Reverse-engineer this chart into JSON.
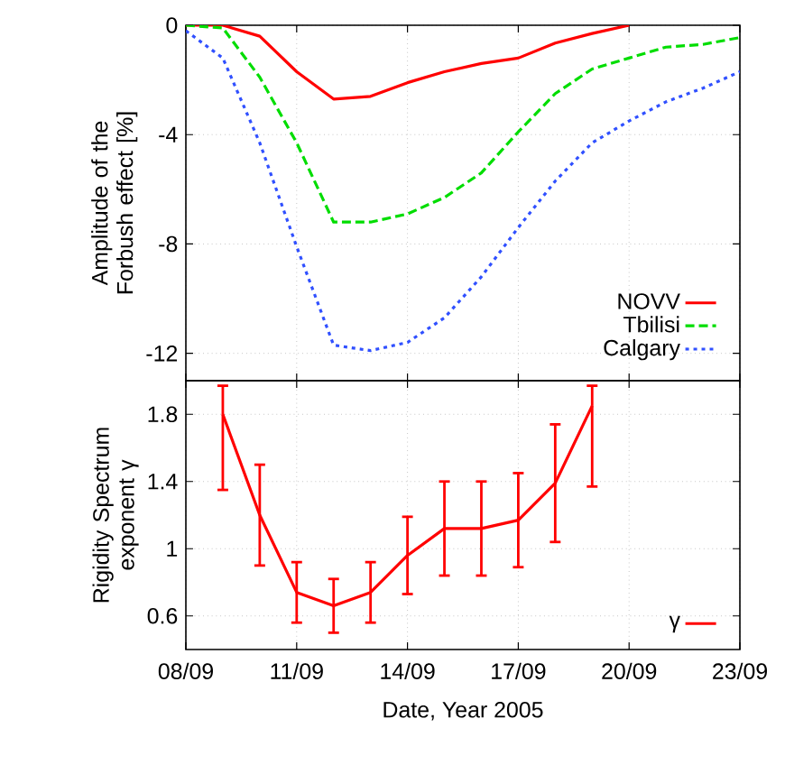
{
  "chart_data": [
    {
      "type": "line",
      "ylabel": "Amplitude of the Forbush effect [%]",
      "xlim": [
        "2005-09-08",
        "2005-09-23"
      ],
      "xticks": [
        {
          "value": "2005-09-08",
          "label": null
        },
        {
          "value": "2005-09-11",
          "label": null
        },
        {
          "value": "2005-09-14",
          "label": null
        },
        {
          "value": "2005-09-17",
          "label": null
        },
        {
          "value": "2005-09-20",
          "label": null
        },
        {
          "value": "2005-09-23",
          "label": null
        }
      ],
      "ylim": [
        -13,
        0
      ],
      "yticks": [
        -12,
        -8,
        -4,
        0
      ],
      "grid": true,
      "legend": "bottom right",
      "tick_labels": "y",
      "marker": "none",
      "series": [
        {
          "name": "NOVV",
          "color": "#ff0000",
          "line_style": "solid",
          "x": [
            "2005-09-08",
            "2005-09-09",
            "2005-09-10",
            "2005-09-11",
            "2005-09-12",
            "2005-09-13",
            "2005-09-14",
            "2005-09-15",
            "2005-09-16",
            "2005-09-17",
            "2005-09-18",
            "2005-09-19",
            "2005-09-20"
          ],
          "values": [
            0,
            0,
            -0.4,
            -1.7,
            -2.7,
            -2.6,
            -2.1,
            -1.7,
            -1.4,
            -1.2,
            -0.65,
            -0.3,
            0
          ]
        },
        {
          "name": "Tbilisi",
          "color": "#00dd00",
          "line_style": "dashed",
          "x": [
            "2005-09-08",
            "2005-09-09",
            "2005-09-10",
            "2005-09-11",
            "2005-09-12",
            "2005-09-13",
            "2005-09-14",
            "2005-09-15",
            "2005-09-16",
            "2005-09-17",
            "2005-09-18",
            "2005-09-19",
            "2005-09-20",
            "2005-09-21",
            "2005-09-22",
            "2005-09-23"
          ],
          "values": [
            0,
            -0.1,
            -1.9,
            -4.3,
            -7.2,
            -7.2,
            -6.9,
            -6.3,
            -5.4,
            -3.9,
            -2.5,
            -1.6,
            -1.2,
            -0.8,
            -0.7,
            -0.45
          ]
        },
        {
          "name": "Calgary",
          "color": "#3050ff",
          "line_style": "dotted",
          "x": [
            "2005-09-08",
            "2005-09-09",
            "2005-09-10",
            "2005-09-11",
            "2005-09-12",
            "2005-09-13",
            "2005-09-14",
            "2005-09-15",
            "2005-09-16",
            "2005-09-17",
            "2005-09-18",
            "2005-09-19",
            "2005-09-20",
            "2005-09-21",
            "2005-09-22",
            "2005-09-23"
          ],
          "values": [
            -0.2,
            -1.2,
            -4.3,
            -8.1,
            -11.7,
            -11.9,
            -11.6,
            -10.7,
            -9.2,
            -7.4,
            -5.7,
            -4.3,
            -3.5,
            -2.8,
            -2.3,
            -1.7
          ]
        }
      ]
    },
    {
      "type": "line",
      "ylabel": "Rigidity Spectrum exponent γ",
      "xlabel": "Date, Year 2005",
      "xlim": [
        "2005-09-08",
        "2005-09-23"
      ],
      "xticks": [
        {
          "value": "2005-09-08",
          "label": "08/09"
        },
        {
          "value": "2005-09-11",
          "label": "11/09"
        },
        {
          "value": "2005-09-14",
          "label": "14/09"
        },
        {
          "value": "2005-09-17",
          "label": "17/09"
        },
        {
          "value": "2005-09-20",
          "label": "20/09"
        },
        {
          "value": "2005-09-23",
          "label": "23/09"
        }
      ],
      "ylim": [
        0.4,
        2.0
      ],
      "yticks": [
        0.6,
        1,
        1.4,
        1.8
      ],
      "grid": true,
      "legend": "bottom right",
      "marker": "none",
      "series": [
        {
          "name": "γ",
          "color": "#ff0000",
          "line_style": "solid",
          "x": [
            "2005-09-09",
            "2005-09-10",
            "2005-09-11",
            "2005-09-12",
            "2005-09-13",
            "2005-09-14",
            "2005-09-15",
            "2005-09-16",
            "2005-09-17",
            "2005-09-18",
            "2005-09-19"
          ],
          "values": [
            1.8,
            1.2,
            0.74,
            0.66,
            0.74,
            0.96,
            1.12,
            1.12,
            1.17,
            1.39,
            1.85
          ],
          "errors": [
            [
              1.35,
              1.97
            ],
            0.3,
            0.18,
            0.16,
            0.18,
            0.23,
            0.28,
            0.28,
            0.28,
            0.35,
            [
              1.37,
              1.97
            ]
          ]
        }
      ]
    }
  ]
}
